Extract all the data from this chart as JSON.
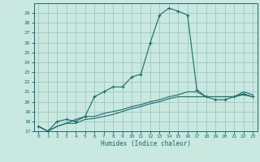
{
  "xlabel": "Humidex (Indice chaleur)",
  "xlim": [
    -0.5,
    23.5
  ],
  "ylim": [
    17,
    30
  ],
  "yticks": [
    17,
    18,
    19,
    20,
    21,
    22,
    23,
    24,
    25,
    26,
    27,
    28,
    29
  ],
  "xticks": [
    0,
    1,
    2,
    3,
    4,
    5,
    6,
    7,
    8,
    9,
    10,
    11,
    12,
    13,
    14,
    15,
    16,
    17,
    18,
    19,
    20,
    21,
    22,
    23
  ],
  "bg_color": "#c8e8e0",
  "grid_color": "#a0c8c0",
  "line_color": "#1a6b6b",
  "line1_x": [
    0,
    1,
    2,
    3,
    4,
    5,
    6,
    7,
    8,
    9,
    10,
    11,
    12,
    13,
    14,
    15,
    16,
    17,
    18,
    19,
    20,
    21,
    22,
    23
  ],
  "line1_y": [
    17.5,
    17.0,
    18.0,
    18.2,
    18.0,
    18.5,
    20.5,
    21.0,
    21.5,
    21.5,
    22.5,
    22.8,
    26.0,
    28.8,
    29.5,
    29.2,
    28.8,
    21.2,
    20.5,
    20.2,
    20.2,
    20.5,
    20.8,
    20.5
  ],
  "line2_x": [
    0,
    1,
    2,
    3,
    4,
    5,
    6,
    7,
    8,
    9,
    10,
    11,
    12,
    13,
    14,
    15,
    16,
    17,
    18,
    19,
    20,
    21,
    22,
    23
  ],
  "line2_y": [
    17.5,
    17.0,
    17.5,
    17.8,
    17.8,
    18.2,
    18.3,
    18.5,
    18.7,
    19.0,
    19.3,
    19.5,
    19.8,
    20.0,
    20.3,
    20.5,
    20.5,
    20.5,
    20.5,
    20.5,
    20.5,
    20.5,
    20.7,
    20.5
  ],
  "line3_x": [
    0,
    1,
    2,
    3,
    4,
    5,
    6,
    7,
    8,
    9,
    10,
    11,
    12,
    13,
    14,
    15,
    16,
    17,
    18,
    19,
    20,
    21,
    22,
    23
  ],
  "line3_y": [
    17.5,
    17.0,
    17.5,
    17.8,
    18.2,
    18.5,
    18.5,
    18.8,
    19.0,
    19.2,
    19.5,
    19.7,
    20.0,
    20.2,
    20.5,
    20.7,
    21.0,
    21.0,
    20.5,
    20.5,
    20.5,
    20.5,
    21.0,
    20.7
  ]
}
